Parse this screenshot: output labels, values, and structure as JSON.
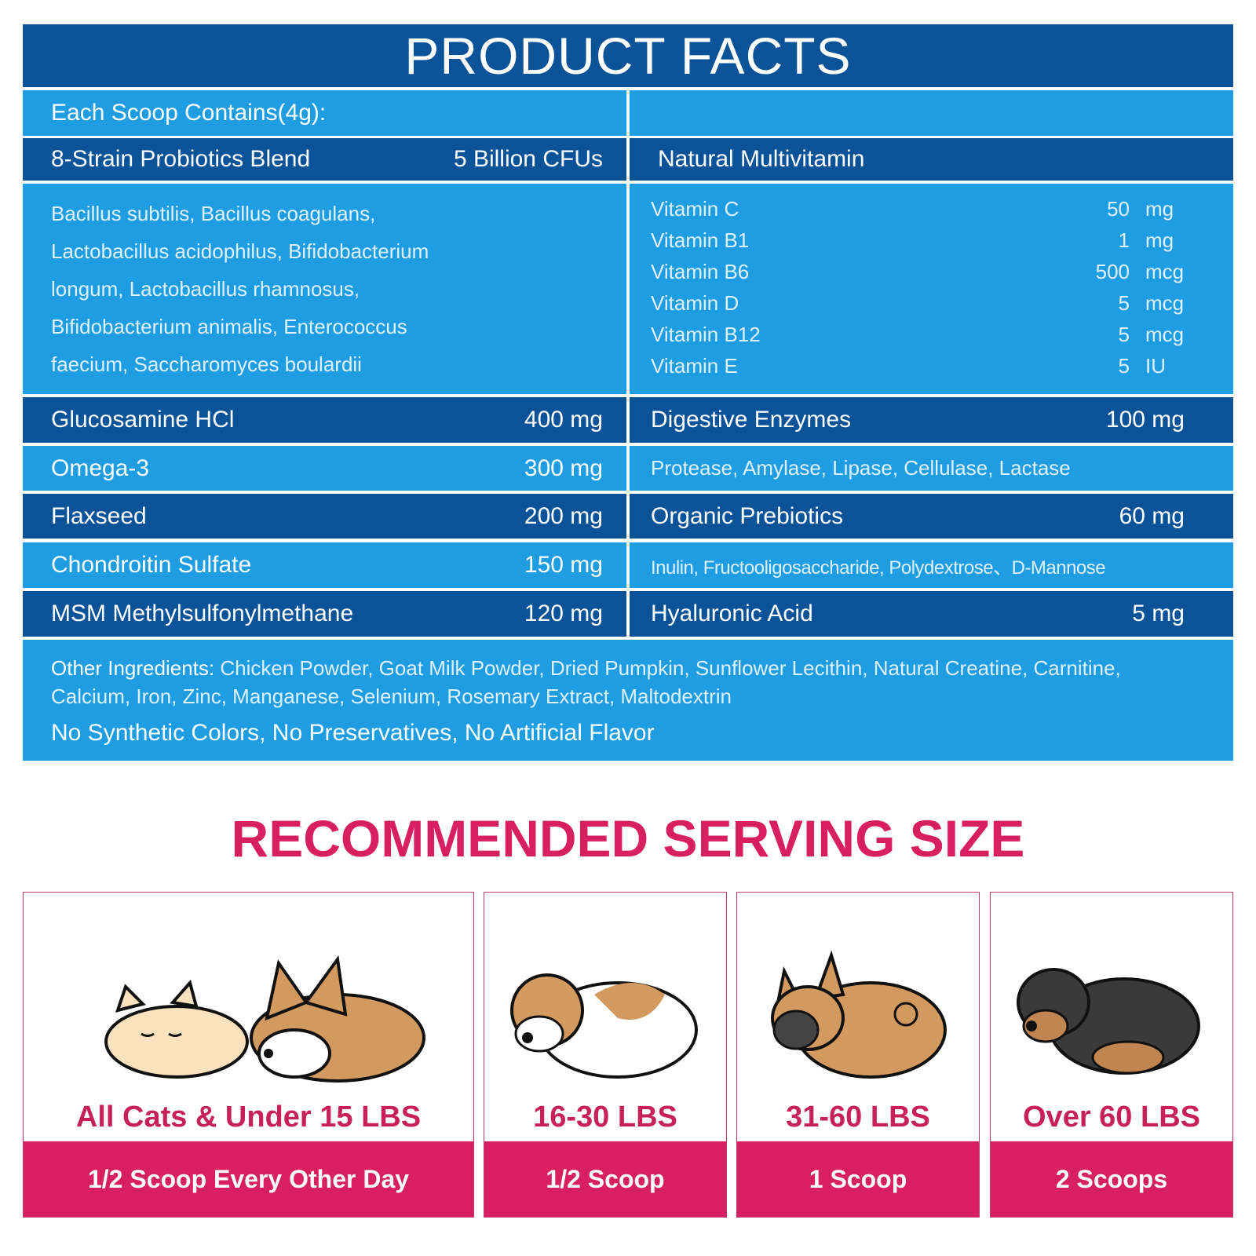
{
  "title": "PRODUCT FACTS",
  "each_scoop": "Each Scoop Contains(4g):",
  "probiotics": {
    "name": "8-Strain Probiotics Blend",
    "amount": "5 Billion CFUs",
    "strains": [
      "Bacillus subtilis, Bacillus coagulans,",
      "Lactobacillus acidophilus, Bifidobacterium",
      "longum, Lactobacillus rhamnosus,",
      "Bifidobacterium animalis, Enterococcus",
      "faecium, Saccharomyces boulardii"
    ]
  },
  "multivitamin": {
    "name": "Natural Multivitamin",
    "items": [
      {
        "name": "Vitamin C",
        "qty": "50",
        "unit": "mg"
      },
      {
        "name": "Vitamin B1",
        "qty": "1",
        "unit": "mg"
      },
      {
        "name": "Vitamin B6",
        "qty": "500",
        "unit": "mcg"
      },
      {
        "name": "Vitamin D",
        "qty": "5",
        "unit": "mcg"
      },
      {
        "name": "Vitamin B12",
        "qty": "5",
        "unit": "mcg"
      },
      {
        "name": "Vitamin E",
        "qty": "5",
        "unit": "IU"
      }
    ]
  },
  "left_rows": [
    {
      "name": "Glucosamine HCl",
      "amount": "400 mg"
    },
    {
      "name": "Omega-3",
      "amount": "300 mg"
    },
    {
      "name": "Flaxseed",
      "amount": "200 mg"
    },
    {
      "name": "Chondroitin Sulfate",
      "amount": "150 mg"
    },
    {
      "name": "MSM Methylsulfonylmethane",
      "amount": "120 mg"
    }
  ],
  "right_rows": [
    {
      "name": "Digestive Enzymes",
      "amount": "100 mg"
    },
    {
      "detail": "Protease, Amylase, Lipase, Cellulase, Lactase"
    },
    {
      "name": "Organic Prebiotics",
      "amount": "60 mg"
    },
    {
      "detail": "Inulin, Fructooligosaccharide, Polydextrose、D-Mannose"
    },
    {
      "name": "Hyaluronic Acid",
      "amount": "5 mg"
    }
  ],
  "other": {
    "label": "Other Ingredients:",
    "text": " Chicken Powder, Goat Milk Powder, Dried Pumpkin, Sunflower Lecithin, Natural Creatine, Carnitine, Calcium, Iron, Zinc, Manganese, Selenium, Rosemary Extract, Maltodextrin",
    "note": "No Synthetic Colors, No Preservatives, No Artificial Flavor"
  },
  "serving": {
    "title": "RECOMMENDED SERVING SIZE",
    "cards": [
      {
        "weight": "All Cats & Under 15 LBS",
        "dose": "1/2 Scoop Every Other Day",
        "icon": "cat-and-corgi-illustration"
      },
      {
        "weight": "16-30 LBS",
        "dose": "1/2 Scoop",
        "icon": "beagle-illustration"
      },
      {
        "weight": "31-60 LBS",
        "dose": "1 Scoop",
        "icon": "french-bulldog-illustration"
      },
      {
        "weight": "Over 60 LBS",
        "dose": "2 Scoops",
        "icon": "rottweiler-illustration"
      }
    ]
  },
  "colors": {
    "dark_blue": "#0b5398",
    "light_blue": "#1f9de3",
    "pink": "#d81f5f"
  }
}
